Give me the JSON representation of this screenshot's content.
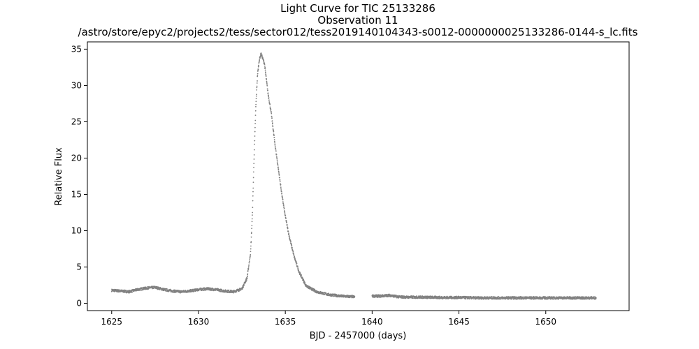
{
  "chart_data": {
    "type": "scatter",
    "title_lines": [
      "Light Curve for TIC 25133286",
      "Observation 11",
      "/astro/store/epyc2/projects2/tess/sector012/tess2019140104343-s0012-0000000025133286-0144-s_lc.fits"
    ],
    "xlabel": "BJD - 2457000 (days)",
    "ylabel": "Relative Flux",
    "xlim": [
      1623.6,
      1654.8
    ],
    "ylim": [
      -1.0,
      36.0
    ],
    "xticks": [
      1625,
      1630,
      1635,
      1640,
      1645,
      1650
    ],
    "yticks": [
      0,
      5,
      10,
      15,
      20,
      25,
      30,
      35
    ],
    "grid": false,
    "marker_color": "#808080",
    "series": [
      {
        "x": [
          1625.0,
          1625.5,
          1626.0,
          1626.5,
          1627.0,
          1627.5,
          1628.0,
          1628.5,
          1629.0,
          1629.5,
          1630.0,
          1630.5,
          1631.0,
          1631.5,
          1632.0,
          1632.5,
          1632.8,
          1633.0,
          1633.1,
          1633.2,
          1633.3,
          1633.4,
          1633.5,
          1633.6,
          1633.8,
          1634.0,
          1634.2,
          1634.4,
          1634.6,
          1634.8,
          1635.0,
          1635.2,
          1635.5,
          1635.8,
          1636.2,
          1636.8,
          1637.5,
          1638.2,
          1639.0,
          1640.0,
          1640.5,
          1641.0,
          1641.5,
          1642.0,
          1643.0,
          1644.0,
          1645.0,
          1646.0,
          1647.0,
          1648.0,
          1649.0,
          1650.0,
          1651.0,
          1652.0,
          1652.9
        ],
        "y": [
          1.8,
          1.7,
          1.6,
          1.9,
          2.1,
          2.2,
          1.9,
          1.7,
          1.6,
          1.7,
          1.9,
          2.0,
          1.9,
          1.7,
          1.6,
          2.0,
          3.5,
          7.0,
          12.0,
          20.0,
          27.0,
          31.5,
          33.5,
          34.4,
          33.0,
          29.0,
          26.0,
          22.0,
          18.5,
          15.0,
          12.0,
          9.5,
          6.5,
          4.3,
          2.4,
          1.6,
          1.2,
          1.0,
          0.9,
          1.0,
          1.0,
          1.1,
          0.9,
          0.85,
          0.85,
          0.8,
          0.8,
          0.75,
          0.75,
          0.75,
          0.75,
          0.75,
          0.75,
          0.75,
          0.75
        ]
      }
    ]
  }
}
